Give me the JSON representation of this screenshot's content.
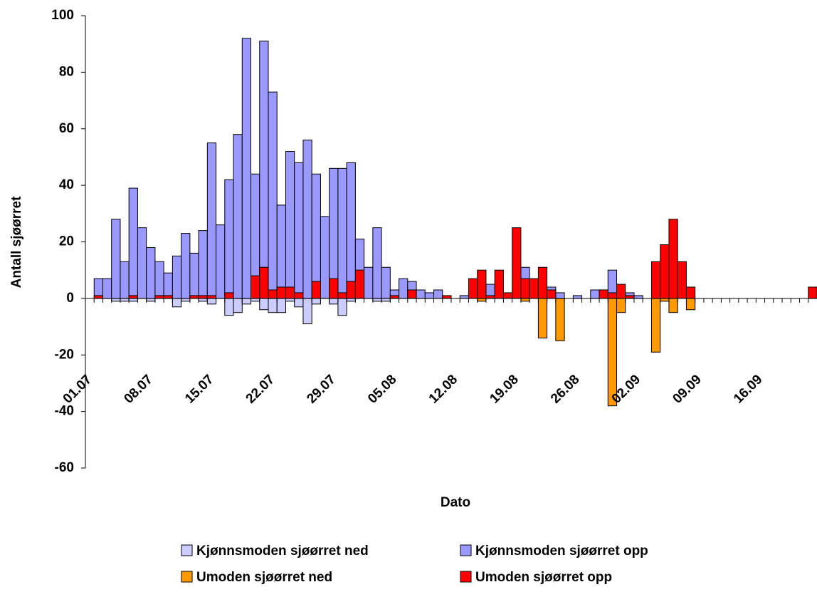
{
  "chart_data": {
    "type": "bar",
    "xlabel": "Dato",
    "ylabel": "Antall sjøørret",
    "categories": [
      "01.07",
      null,
      null,
      null,
      null,
      null,
      null,
      "08.07",
      null,
      null,
      null,
      null,
      null,
      null,
      "15.07",
      null,
      null,
      null,
      null,
      null,
      null,
      "22.07",
      null,
      null,
      null,
      null,
      null,
      null,
      "29.07",
      null,
      null,
      null,
      null,
      null,
      null,
      "05.08",
      null,
      null,
      null,
      null,
      null,
      null,
      "12.08",
      null,
      null,
      null,
      null,
      null,
      null,
      "19.08",
      null,
      null,
      null,
      null,
      null,
      null,
      "26.08",
      null,
      null,
      null,
      null,
      null,
      null,
      "02.09",
      null,
      null,
      null,
      null,
      null,
      null,
      "09.09",
      null,
      null,
      null,
      null,
      null,
      null,
      "16.09",
      null,
      null,
      null,
      null,
      null,
      null
    ],
    "series": [
      {
        "name": "Kjønnsmoden sjøørret ned",
        "color": "#ccccff",
        "values": [
          null,
          null,
          null,
          -1,
          -1,
          -1,
          null,
          -1,
          null,
          null,
          -3,
          -1,
          null,
          -1,
          -2,
          null,
          -6,
          -5,
          -2,
          -1,
          -4,
          -5,
          -5,
          -1,
          -3,
          -9,
          -2,
          null,
          -2,
          -6,
          -1,
          null,
          null,
          -1,
          -1,
          null,
          null,
          null,
          null,
          null,
          null,
          null,
          null,
          null,
          null,
          null,
          null,
          null,
          null,
          null,
          null,
          null,
          null,
          null,
          null,
          null,
          null,
          null,
          null,
          null,
          null,
          null,
          null,
          null,
          null,
          null,
          null,
          null,
          null,
          null,
          null,
          null,
          null,
          null,
          null,
          null,
          null,
          null,
          null,
          null,
          null,
          null,
          null,
          null
        ]
      },
      {
        "name": "Kjønnsmoden sjøørret opp",
        "color": "#9999ff",
        "values": [
          null,
          7,
          7,
          28,
          13,
          39,
          25,
          18,
          13,
          9,
          15,
          23,
          16,
          24,
          55,
          26,
          42,
          58,
          92,
          44,
          91,
          73,
          33,
          52,
          48,
          56,
          44,
          29,
          46,
          46,
          48,
          21,
          11,
          25,
          11,
          3,
          7,
          6,
          3,
          2,
          3,
          null,
          null,
          1,
          null,
          null,
          5,
          null,
          null,
          null,
          11,
          null,
          null,
          4,
          2,
          null,
          1,
          null,
          3,
          3,
          10,
          null,
          2,
          1,
          null,
          null,
          null,
          null,
          null,
          null,
          null,
          null,
          null,
          null,
          null,
          null,
          null,
          null,
          null,
          null,
          null,
          null,
          null,
          null
        ]
      },
      {
        "name": "Umoden sjøørret ned",
        "color": "#ff9900",
        "values": [
          null,
          null,
          null,
          null,
          null,
          null,
          null,
          null,
          null,
          null,
          null,
          null,
          null,
          null,
          null,
          null,
          null,
          null,
          null,
          null,
          null,
          null,
          null,
          null,
          null,
          null,
          null,
          null,
          null,
          null,
          null,
          null,
          null,
          null,
          null,
          null,
          null,
          null,
          null,
          null,
          null,
          null,
          null,
          null,
          null,
          -1,
          null,
          null,
          null,
          null,
          -1,
          null,
          -14,
          null,
          -15,
          null,
          null,
          null,
          null,
          null,
          -38,
          -5,
          null,
          null,
          null,
          -19,
          -1,
          -5,
          null,
          -4,
          null,
          null,
          null,
          null,
          null,
          null,
          null,
          null,
          null,
          null,
          null,
          null,
          null,
          null
        ]
      },
      {
        "name": "Umoden sjøørret opp",
        "color": "#ff0000",
        "values": [
          null,
          1,
          null,
          null,
          null,
          1,
          null,
          null,
          1,
          1,
          null,
          null,
          1,
          1,
          1,
          null,
          2,
          null,
          null,
          8,
          11,
          3,
          4,
          4,
          2,
          null,
          6,
          null,
          7,
          2,
          6,
          10,
          null,
          null,
          null,
          1,
          null,
          3,
          null,
          null,
          null,
          1,
          null,
          null,
          7,
          10,
          1,
          10,
          2,
          25,
          7,
          7,
          11,
          3,
          null,
          null,
          null,
          null,
          null,
          3,
          2,
          5,
          1,
          null,
          null,
          13,
          19,
          28,
          13,
          4,
          null,
          null,
          null,
          null,
          null,
          null,
          null,
          null,
          null,
          null,
          null,
          null,
          null,
          4
        ]
      }
    ],
    "ylim": [
      -60,
      100
    ],
    "yticks": [
      -60,
      -40,
      -20,
      0,
      20,
      40,
      60,
      80,
      100
    ],
    "grid": false,
    "legend": "bottom"
  }
}
